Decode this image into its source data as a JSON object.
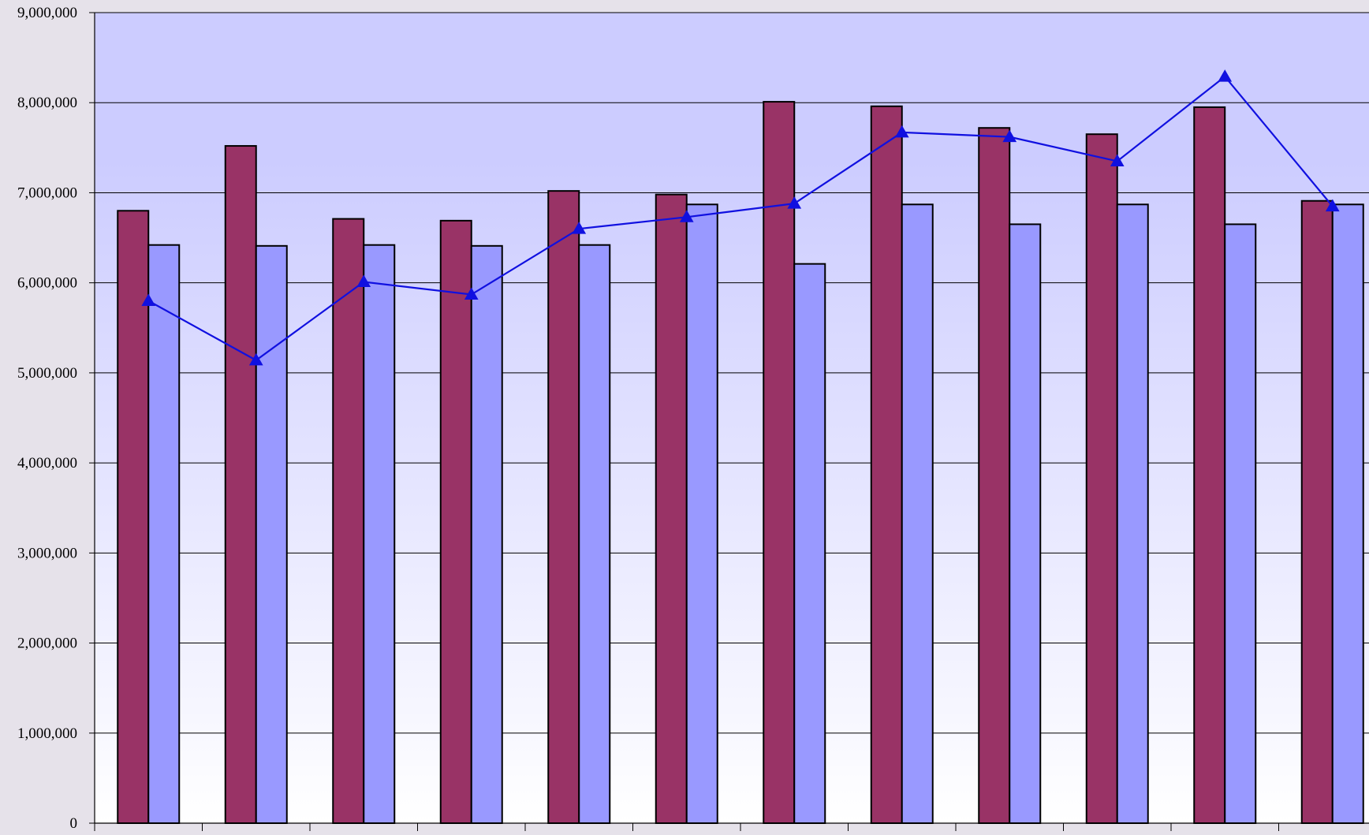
{
  "chart_data": {
    "type": "bar",
    "title": "",
    "xlabel": "",
    "ylabel": "",
    "ylim": [
      0,
      9000000
    ],
    "yticks": [
      0,
      1000000,
      2000000,
      3000000,
      4000000,
      5000000,
      6000000,
      7000000,
      8000000,
      9000000
    ],
    "ytick_labels": [
      "0",
      "1,000,000",
      "2,000,000",
      "3,000,000",
      "4,000,000",
      "5,000,000",
      "6,000,000",
      "7,000,000",
      "8,000,000",
      "9,000,000"
    ],
    "grid": true,
    "legend": "none",
    "categories": [
      "",
      "",
      "",
      "",
      "",
      "",
      "",
      "",
      "",
      "",
      "",
      ""
    ],
    "series": [
      {
        "type": "bar",
        "color": "#993366",
        "values": [
          6800000,
          7520000,
          6710000,
          6690000,
          7020000,
          6980000,
          8010000,
          7960000,
          7720000,
          7650000,
          7950000,
          6910000
        ]
      },
      {
        "type": "bar",
        "color": "#9999ff",
        "values": [
          6420000,
          6410000,
          6420000,
          6410000,
          6420000,
          6870000,
          6210000,
          6870000,
          6650000,
          6870000,
          6650000,
          6870000
        ]
      },
      {
        "type": "line",
        "marker": "triangle",
        "color": "#1010e0",
        "values": [
          5800000,
          5140000,
          6010000,
          5870000,
          6600000,
          6730000,
          6880000,
          7670000,
          7620000,
          7350000,
          8290000,
          6850000
        ]
      }
    ]
  }
}
